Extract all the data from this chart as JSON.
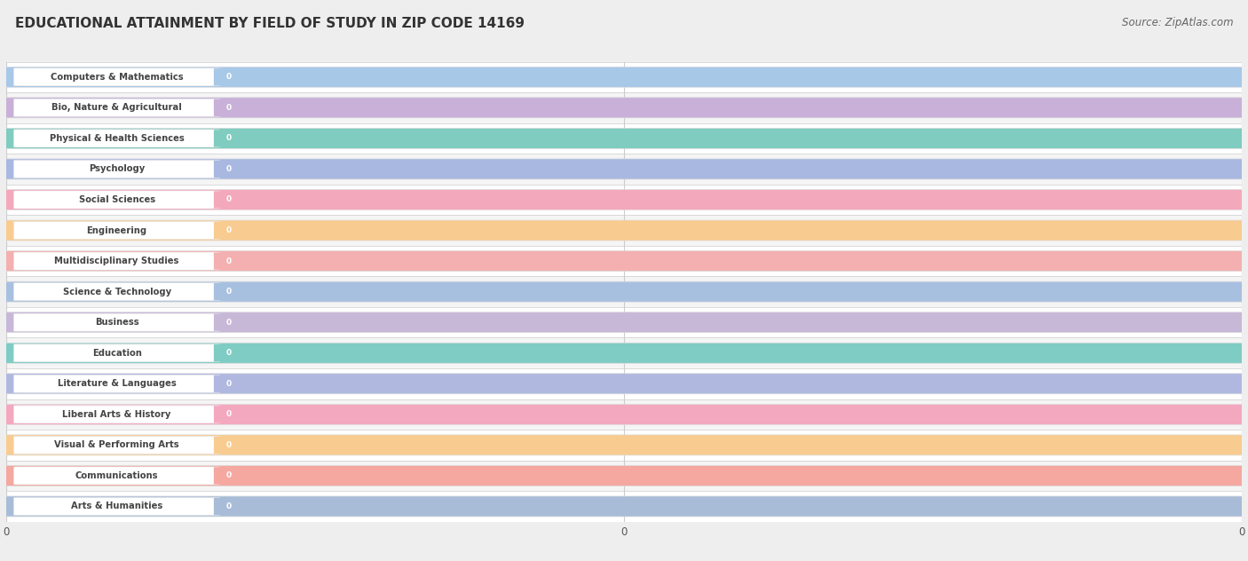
{
  "title": "EDUCATIONAL ATTAINMENT BY FIELD OF STUDY IN ZIP CODE 14169",
  "source": "Source: ZipAtlas.com",
  "categories": [
    "Computers & Mathematics",
    "Bio, Nature & Agricultural",
    "Physical & Health Sciences",
    "Psychology",
    "Social Sciences",
    "Engineering",
    "Multidisciplinary Studies",
    "Science & Technology",
    "Business",
    "Education",
    "Literature & Languages",
    "Liberal Arts & History",
    "Visual & Performing Arts",
    "Communications",
    "Arts & Humanities"
  ],
  "values": [
    0,
    0,
    0,
    0,
    0,
    0,
    0,
    0,
    0,
    0,
    0,
    0,
    0,
    0,
    0
  ],
  "bar_colors": [
    "#a8c8e8",
    "#c8b0d8",
    "#80ccc0",
    "#a8b8e0",
    "#f4a8bc",
    "#f8cc90",
    "#f4b0b0",
    "#a8c0e0",
    "#c8b8d8",
    "#7eccc4",
    "#b0b8e0",
    "#f4a8c0",
    "#f8cc90",
    "#f4a8a0",
    "#a8bcd8"
  ],
  "background_color": "#eeeeee",
  "row_bg_even": "#ffffff",
  "row_bg_odd": "#f5f5f5",
  "title_fontsize": 11,
  "source_fontsize": 8.5,
  "bar_text_color": "#555555",
  "value_color": "#888888",
  "grid_color": "#cccccc",
  "n_gridlines": 3
}
